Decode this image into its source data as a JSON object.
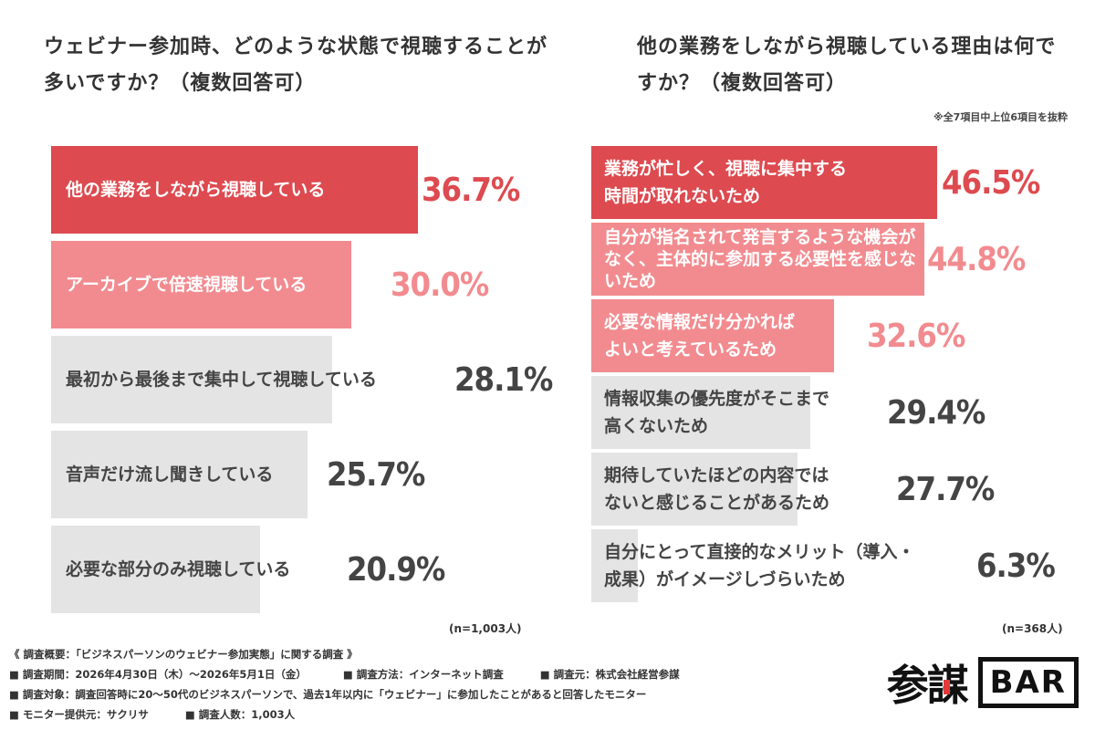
{
  "left_title": "ウェビナー参加時、どのような状態で視聴することが多いですか？（複数回答可）",
  "right_title": "他の業務をしながら視聴している理由は何ですか？（複数回答可）",
  "right_note": "※全7項目中上位6項目を抜粋",
  "chart_data": [
    {
      "type": "bar",
      "orientation": "horizontal",
      "title": "ウェビナー参加時、どのような状態で視聴することが多いですか？（複数回答可）",
      "categories": [
        "他の業務をしながら視聴している",
        "アーカイブで倍速視聴している",
        "最初から最後まで集中して視聴している",
        "音声だけ流し聞きしている",
        "必要な部分のみ視聴している"
      ],
      "values": [
        36.7,
        30.0,
        28.1,
        25.7,
        20.9
      ],
      "value_labels": [
        "36.7%",
        "30.0%",
        "28.1%",
        "25.7%",
        "20.9%"
      ],
      "bar_colors": [
        "#dd4a4f",
        "#f28b8f",
        "#e4e4e4",
        "#e4e4e4",
        "#e4e4e4"
      ],
      "value_colors": [
        "#dd4a4f",
        "#f28b8f",
        "#444444",
        "#444444",
        "#444444"
      ],
      "label_colors": [
        "#ffffff",
        "#ffffff",
        "#444444",
        "#444444",
        "#444444"
      ],
      "n_label": "(n=1,003人)"
    },
    {
      "type": "bar",
      "orientation": "horizontal",
      "title": "他の業務をしながら視聴している理由は何ですか？（複数回答可）",
      "categories": [
        "業務が忙しく、視聴に集中する時間が取れないため",
        "自分が指名されて発言するような機会がなく、主体的に参加する必要性を感じないため",
        "必要な情報だけ分かればよいと考えているため",
        "情報収集の優先度がそこまで高くないため",
        "期待していたほどの内容ではないと感じることがあるため",
        "自分にとって直接的なメリット（導入・成果）がイメージしづらいため"
      ],
      "label_lines": [
        [
          "業務が忙しく、視聴に集中する",
          "時間が取れないため"
        ],
        [
          "自分が指名されて発言するような機会が",
          "なく、主体的に参加する必要性を感じな",
          "いため"
        ],
        [
          "必要な情報だけ分かれば",
          "よいと考えているため"
        ],
        [
          "情報収集の優先度がそこまで",
          "高くないため"
        ],
        [
          "期待していたほどの内容では",
          "ないと感じることがあるため"
        ],
        [
          "自分にとって直接的なメリット（導入・",
          "成果）がイメージしづらいため"
        ]
      ],
      "values": [
        46.5,
        44.8,
        32.6,
        29.4,
        27.7,
        6.3
      ],
      "value_labels": [
        "46.5%",
        "44.8%",
        "32.6%",
        "29.4%",
        "27.7%",
        "6.3%"
      ],
      "bar_colors": [
        "#dd4a4f",
        "#f28b8f",
        "#f28b8f",
        "#e4e4e4",
        "#e4e4e4",
        "#e4e4e4"
      ],
      "value_colors": [
        "#dd4a4f",
        "#f28b8f",
        "#f28b8f",
        "#444444",
        "#444444",
        "#444444"
      ],
      "label_colors": [
        "#ffffff",
        "#ffffff",
        "#ffffff",
        "#444444",
        "#444444",
        "#444444"
      ],
      "n_label": "(n=368人)"
    }
  ],
  "footer": {
    "heading": "《 調査概要：「ビジネスパーソンのウェビナー参加実態」に関する調査 》",
    "period": "■ 調査期間：2026年4月30日（木）〜2026年5月1日（金）",
    "method": "■ 調査方法：インターネット調査",
    "organizer": "■ 調査元：株式会社経営参謀",
    "target": "■ 調査対象：調査回答時に20〜50代のビジネスパーソンで、過去1年以内に「ウェビナー」に参加したことがあると回答したモニター",
    "provider": "■ モニター提供元：サクリサ",
    "count": "■ 調査人数：1,003人"
  },
  "logo": {
    "text1": "参謀",
    "text2": "BAR"
  }
}
